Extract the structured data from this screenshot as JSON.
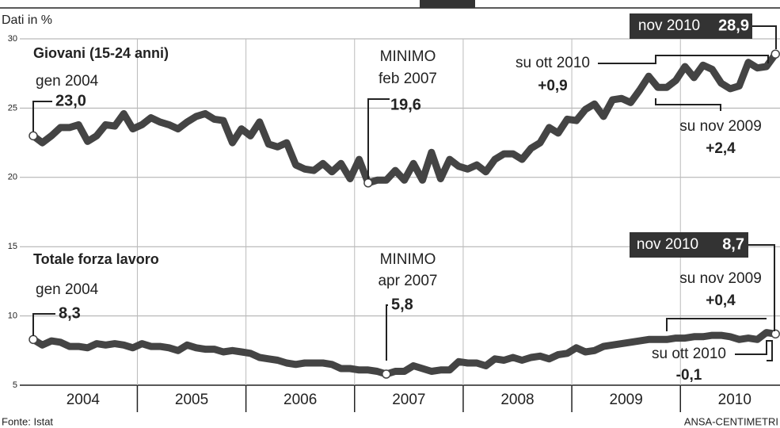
{
  "chart_data": {
    "type": "line",
    "subtitle": "Dati in %",
    "years": [
      "2004",
      "2005",
      "2006",
      "2007",
      "2008",
      "2009",
      "2010"
    ],
    "ylim": [
      5,
      30
    ],
    "yticks": [
      5,
      10,
      15,
      20,
      25,
      30
    ],
    "grid": true,
    "series": [
      {
        "name": "Giovani (15-24 anni)",
        "color": "#444444",
        "values": [
          23.0,
          22.5,
          23.0,
          23.6,
          23.6,
          23.8,
          22.6,
          23.0,
          23.8,
          23.7,
          24.6,
          23.5,
          23.8,
          24.3,
          24.0,
          23.8,
          23.5,
          24.0,
          24.4,
          24.6,
          24.2,
          24.1,
          22.5,
          23.5,
          23.0,
          24.0,
          22.4,
          22.2,
          22.5,
          20.9,
          20.6,
          20.5,
          21.0,
          20.4,
          21.0,
          19.9,
          21.3,
          19.6,
          19.8,
          19.8,
          20.5,
          19.8,
          21.0,
          19.8,
          21.8,
          19.9,
          21.3,
          20.8,
          20.6,
          20.9,
          20.4,
          21.3,
          21.7,
          21.7,
          21.3,
          22.1,
          22.5,
          23.6,
          23.2,
          24.2,
          24.1,
          24.9,
          25.3,
          24.4,
          25.6,
          25.7,
          25.4,
          26.3,
          27.3,
          26.5,
          26.5,
          27.0,
          28.0,
          27.2,
          28.1,
          27.8,
          26.8,
          26.4,
          26.6,
          28.3,
          27.9,
          28.0,
          28.9
        ],
        "value_labels": [
          "23,0",
          null,
          null,
          null,
          null,
          null,
          null,
          null,
          null,
          null,
          null,
          null,
          null,
          null,
          null,
          null,
          null,
          null,
          null,
          null,
          null,
          null,
          null,
          null,
          null,
          null,
          null,
          null,
          null,
          null,
          null,
          null,
          null,
          null,
          null,
          null,
          null,
          "19,6",
          null,
          null,
          null,
          null,
          null,
          null,
          null,
          null,
          null,
          null,
          null,
          null,
          null,
          null,
          null,
          null,
          null,
          null,
          null,
          null,
          null,
          null,
          null,
          null,
          null,
          null,
          null,
          null,
          null,
          null,
          null,
          null,
          null,
          null,
          null,
          null,
          null,
          null,
          null,
          null,
          null,
          null,
          null,
          null,
          "28,9"
        ]
      },
      {
        "name": "Totale forza lavoro",
        "color": "#444444",
        "values": [
          8.3,
          7.9,
          8.2,
          8.1,
          7.8,
          7.8,
          7.7,
          8.0,
          7.9,
          8.0,
          7.9,
          7.7,
          8.0,
          7.8,
          7.8,
          7.7,
          7.5,
          7.9,
          7.7,
          7.6,
          7.6,
          7.4,
          7.5,
          7.4,
          7.3,
          7.0,
          6.9,
          6.8,
          6.6,
          6.5,
          6.6,
          6.6,
          6.6,
          6.5,
          6.2,
          6.2,
          6.1,
          6.1,
          6.0,
          5.8,
          6.0,
          6.0,
          6.4,
          6.2,
          6.0,
          6.1,
          6.1,
          6.7,
          6.6,
          6.6,
          6.4,
          6.9,
          6.8,
          7.0,
          6.8,
          7.0,
          7.1,
          6.9,
          7.2,
          7.3,
          7.7,
          7.4,
          7.5,
          7.8,
          7.9,
          8.0,
          8.1,
          8.2,
          8.3,
          8.3,
          8.3,
          8.4,
          8.4,
          8.5,
          8.5,
          8.6,
          8.6,
          8.5,
          8.3,
          8.4,
          8.3,
          8.8,
          8.7
        ],
        "value_labels": [
          "8,3",
          null,
          null,
          null,
          null,
          null,
          null,
          null,
          null,
          null,
          null,
          null,
          null,
          null,
          null,
          null,
          null,
          null,
          null,
          null,
          null,
          null,
          null,
          null,
          null,
          null,
          null,
          null,
          null,
          null,
          null,
          null,
          null,
          null,
          null,
          null,
          null,
          null,
          null,
          "5,8",
          null,
          null,
          null,
          null,
          null,
          null,
          null,
          null,
          null,
          null,
          null,
          null,
          null,
          null,
          null,
          null,
          null,
          null,
          null,
          null,
          null,
          null,
          null,
          null,
          null,
          null,
          null,
          null,
          null,
          null,
          null,
          null,
          null,
          null,
          null,
          null,
          null,
          null,
          null,
          null,
          null,
          null,
          "8,7"
        ]
      }
    ],
    "notes": [
      "gen 2004",
      "MINIMO",
      "feb 2007",
      "nov 2010",
      "su ott 2010",
      "+0,9",
      "su nov 2009",
      "+2,4",
      "gen 2004",
      "MINIMO",
      "apr 2007",
      "nov 2010",
      "su nov 2009",
      "+0,4",
      "su ott 2010",
      "-0,1"
    ]
  },
  "source": "Fonte: Istat",
  "credit": "ANSA-CENTIMETRI"
}
